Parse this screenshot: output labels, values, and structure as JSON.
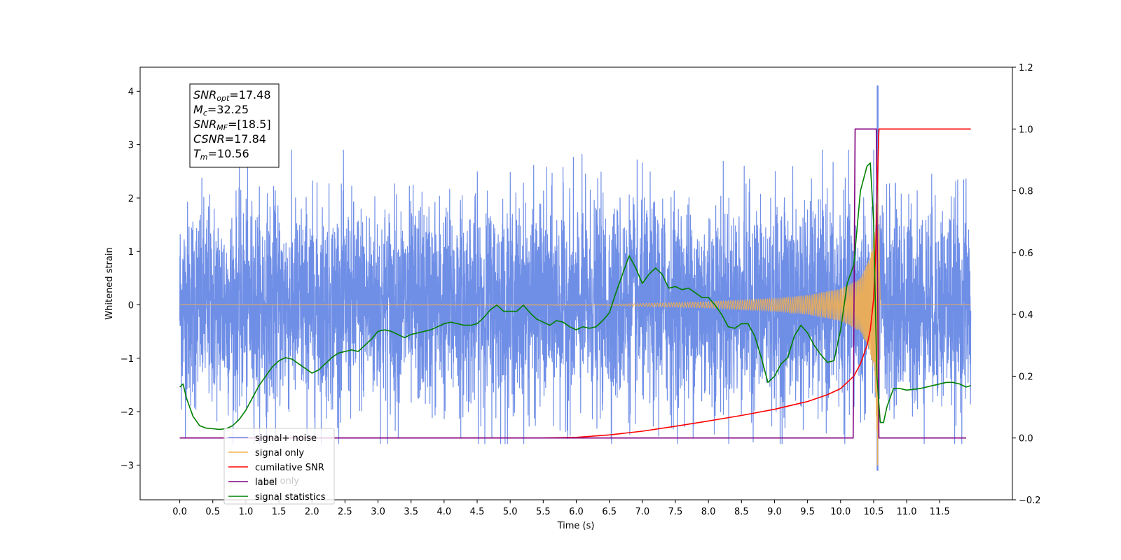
{
  "chart_data": {
    "type": "line",
    "xlabel": "Time (s)",
    "ylabel": "Whitened strain",
    "xlim": [
      -0.6,
      12.6
    ],
    "ylim": [
      -3.65,
      4.45
    ],
    "ylim_right": [
      -0.2,
      1.2
    ],
    "x_ticks": [
      "0.0",
      "0.5",
      "1.0",
      "1.5",
      "2.0",
      "2.5",
      "3.0",
      "3.5",
      "4.0",
      "4.5",
      "5.0",
      "5.5",
      "6.0",
      "6.5",
      "7.0",
      "7.5",
      "8.0",
      "8.5",
      "9.0",
      "9.5",
      "10.0",
      "10.5",
      "11.0",
      "11.5"
    ],
    "y_ticks": [
      "−3",
      "−2",
      "−1",
      "0",
      "1",
      "2",
      "3",
      "4"
    ],
    "y_ticks_right": [
      "−0.2",
      "0.0",
      "0.2",
      "0.4",
      "0.6",
      "0.8",
      "1.0",
      "1.2"
    ],
    "grid": false,
    "legend_position": "lower-left",
    "annotation": {
      "lines": [
        {
          "sym": "SNR",
          "sub": "opt",
          "val": "=17.48"
        },
        {
          "sym": "M",
          "sub": "c",
          "val": "=32.25"
        },
        {
          "sym": "SNR",
          "sub": "MF",
          "val": "=[18.5]"
        },
        {
          "sym": "CSNR",
          "sub": "",
          "val": "=17.84"
        },
        {
          "sym": "T",
          "sub": "m",
          "val": "=10.56"
        }
      ]
    },
    "series": [
      {
        "name": "signal+ noise",
        "color": "#6f8ee6",
        "axis": "left",
        "description_range": [
          -3.1,
          4.1
        ],
        "peak": {
          "x": 10.56,
          "y_max": 4.1,
          "y_min": -3.1
        }
      },
      {
        "name": "signal only",
        "color": "#f5b04d",
        "axis": "left",
        "envelope_x": [
          0.0,
          6.5,
          8.0,
          9.0,
          9.5,
          10.0,
          10.3,
          10.45,
          10.52,
          10.56,
          10.6
        ],
        "envelope_y": [
          0.0,
          0.01,
          0.06,
          0.12,
          0.18,
          0.3,
          0.5,
          0.9,
          1.4,
          3.0,
          0.0
        ]
      },
      {
        "name": "cumilative SNR",
        "color": "#ff0000",
        "axis": "right",
        "x": [
          0.0,
          5.5,
          6.0,
          6.5,
          7.0,
          7.5,
          8.0,
          8.5,
          9.0,
          9.5,
          9.8,
          10.0,
          10.2,
          10.3,
          10.4,
          10.45,
          10.5,
          10.53,
          10.56,
          10.58,
          11.97
        ],
        "y": [
          0.0,
          0.0,
          0.002,
          0.01,
          0.022,
          0.038,
          0.055,
          0.073,
          0.093,
          0.118,
          0.14,
          0.16,
          0.2,
          0.24,
          0.3,
          0.35,
          0.45,
          0.6,
          0.85,
          1.0,
          1.0
        ]
      },
      {
        "name": "label",
        "color": "#800080",
        "axis": "right",
        "x": [
          0.0,
          10.15,
          10.19,
          10.22,
          10.5,
          10.54,
          10.58,
          11.9
        ],
        "y": [
          0.0,
          0.0,
          0.0,
          1.0,
          1.0,
          1.0,
          0.0,
          0.0
        ]
      },
      {
        "name": "signal statistics",
        "color": "#008000",
        "axis": "right",
        "x": [
          0.0,
          0.05,
          0.1,
          0.2,
          0.3,
          0.4,
          0.5,
          0.6,
          0.7,
          0.8,
          0.9,
          1.0,
          1.1,
          1.2,
          1.3,
          1.4,
          1.5,
          1.6,
          1.7,
          1.8,
          1.9,
          2.0,
          2.1,
          2.2,
          2.3,
          2.4,
          2.5,
          2.6,
          2.7,
          2.8,
          2.9,
          3.0,
          3.1,
          3.2,
          3.3,
          3.4,
          3.5,
          3.6,
          3.7,
          3.8,
          3.9,
          4.0,
          4.1,
          4.2,
          4.3,
          4.4,
          4.5,
          4.6,
          4.7,
          4.8,
          4.9,
          5.0,
          5.1,
          5.2,
          5.3,
          5.4,
          5.5,
          5.6,
          5.7,
          5.8,
          5.9,
          6.0,
          6.1,
          6.2,
          6.3,
          6.4,
          6.5,
          6.6,
          6.7,
          6.8,
          6.9,
          7.0,
          7.1,
          7.2,
          7.3,
          7.4,
          7.5,
          7.6,
          7.7,
          7.8,
          7.9,
          8.0,
          8.1,
          8.2,
          8.3,
          8.4,
          8.5,
          8.6,
          8.7,
          8.8,
          8.9,
          9.0,
          9.1,
          9.2,
          9.3,
          9.4,
          9.5,
          9.6,
          9.7,
          9.8,
          9.9,
          10.0,
          10.1,
          10.2,
          10.3,
          10.4,
          10.45,
          10.5,
          10.55,
          10.6,
          10.65,
          10.7,
          10.8,
          10.9,
          11.0,
          11.2,
          11.4,
          11.6,
          11.7,
          11.8,
          11.9,
          11.97
        ],
        "y": [
          0.165,
          0.175,
          0.13,
          0.07,
          0.04,
          0.032,
          0.03,
          0.028,
          0.03,
          0.04,
          0.06,
          0.09,
          0.13,
          0.17,
          0.2,
          0.23,
          0.25,
          0.26,
          0.255,
          0.24,
          0.225,
          0.21,
          0.22,
          0.24,
          0.26,
          0.275,
          0.28,
          0.285,
          0.28,
          0.3,
          0.32,
          0.345,
          0.35,
          0.345,
          0.335,
          0.325,
          0.335,
          0.34,
          0.345,
          0.35,
          0.36,
          0.37,
          0.375,
          0.37,
          0.365,
          0.365,
          0.37,
          0.39,
          0.415,
          0.43,
          0.41,
          0.41,
          0.41,
          0.43,
          0.405,
          0.385,
          0.375,
          0.365,
          0.38,
          0.375,
          0.36,
          0.35,
          0.36,
          0.355,
          0.36,
          0.38,
          0.405,
          0.47,
          0.53,
          0.59,
          0.55,
          0.5,
          0.53,
          0.55,
          0.53,
          0.485,
          0.49,
          0.48,
          0.485,
          0.47,
          0.455,
          0.455,
          0.43,
          0.4,
          0.36,
          0.355,
          0.37,
          0.37,
          0.33,
          0.26,
          0.18,
          0.2,
          0.24,
          0.26,
          0.33,
          0.365,
          0.34,
          0.3,
          0.27,
          0.245,
          0.25,
          0.35,
          0.5,
          0.56,
          0.8,
          0.88,
          0.89,
          0.7,
          0.2,
          0.05,
          0.05,
          0.1,
          0.16,
          0.16,
          0.155,
          0.16,
          0.17,
          0.18,
          0.18,
          0.175,
          0.165,
          0.17
        ]
      },
      {
        "name": "label only",
        "color": "#c8c8c8",
        "axis": "none"
      }
    ],
    "legend_entries": [
      {
        "label": "signal+ noise",
        "color": "#6f8ee6"
      },
      {
        "label": "signal only",
        "color": "#f5b04d"
      },
      {
        "label": "cumilative SNR",
        "color": "#ff0000"
      },
      {
        "label": "label",
        "color": "#800080"
      },
      {
        "label": "signal statistics",
        "color": "#008000"
      }
    ],
    "legend_ghost_text": "label only"
  }
}
